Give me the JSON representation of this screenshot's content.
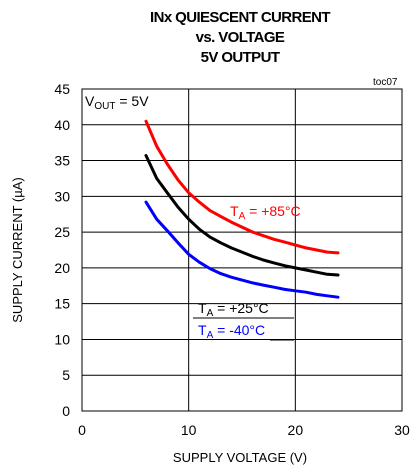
{
  "chart_data": {
    "type": "line",
    "title_lines": [
      "INx QUIESCENT CURRENT",
      "vs. VOLTAGE",
      "5V OUTPUT"
    ],
    "chart_id": "toc07",
    "xlabel": "SUPPLY VOLTAGE (V)",
    "ylabel": "SUPPLY CURRENT (µA)",
    "xlim": [
      0,
      30
    ],
    "ylim": [
      0,
      45
    ],
    "xticks": [
      0,
      10,
      20,
      30
    ],
    "yticks": [
      0,
      5,
      10,
      15,
      20,
      25,
      30,
      35,
      40,
      45
    ],
    "grid": true,
    "condition": {
      "main": "V",
      "sub": "OUT",
      "rest": " = 5V"
    },
    "series": [
      {
        "label_main": "T",
        "label_sub": "A",
        "label_rest": " = +85°C",
        "color": "#ff0000",
        "x": [
          6,
          7,
          8,
          9,
          10,
          11,
          12,
          13,
          14,
          15,
          16,
          17,
          18,
          19,
          20,
          21,
          22,
          23,
          24
        ],
        "y": [
          40.5,
          37,
          34.5,
          32.3,
          30.5,
          29.2,
          28,
          27.2,
          26.4,
          25.7,
          25,
          24.5,
          24,
          23.6,
          23.2,
          22.8,
          22.5,
          22.2,
          22.1
        ]
      },
      {
        "label_main": "T",
        "label_sub": "A",
        "label_rest": " = +25°C",
        "color": "#000000",
        "x": [
          6,
          7,
          8,
          9,
          10,
          11,
          12,
          13,
          14,
          15,
          16,
          17,
          18,
          19,
          20,
          21,
          22,
          23,
          24
        ],
        "y": [
          35.7,
          32.5,
          30.5,
          28.5,
          26.8,
          25.4,
          24.3,
          23.5,
          22.8,
          22.2,
          21.6,
          21.1,
          20.7,
          20.3,
          20,
          19.7,
          19.4,
          19.1,
          19
        ]
      },
      {
        "label_main": "T",
        "label_sub": "A",
        "label_rest": " = -40°C",
        "color": "#0000ff",
        "x": [
          6,
          7,
          8,
          9,
          10,
          11,
          12,
          13,
          14,
          15,
          16,
          17,
          18,
          19,
          20,
          21,
          22,
          23,
          24
        ],
        "y": [
          29.2,
          26.8,
          25.2,
          23.5,
          21.9,
          20.8,
          19.9,
          19.2,
          18.7,
          18.3,
          17.9,
          17.6,
          17.3,
          17,
          16.8,
          16.6,
          16.3,
          16.1,
          15.9
        ]
      }
    ]
  }
}
